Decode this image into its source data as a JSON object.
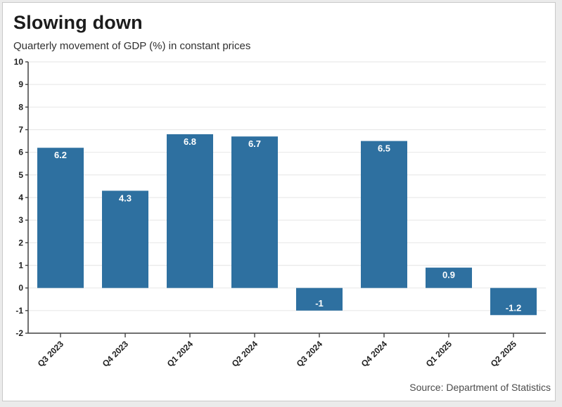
{
  "header": {
    "title": "Slowing down",
    "subtitle": "Quarterly movement of GDP (%) in constant prices"
  },
  "footer": {
    "source": "Source: Department of Statistics"
  },
  "chart_data": {
    "type": "bar",
    "title": "Slowing down",
    "subtitle": "Quarterly movement of GDP (%) in constant prices",
    "categories": [
      "Q3 2023",
      "Q4 2023",
      "Q1 2024",
      "Q2 2024",
      "Q3 2024",
      "Q4 2024",
      "Q1 2025",
      "Q2 2025"
    ],
    "values": [
      6.2,
      4.3,
      6.8,
      6.7,
      -1,
      6.5,
      0.9,
      -1.2
    ],
    "bar_labels": [
      "6.2",
      "4.3",
      "6.8",
      "6.7",
      "-1",
      "6.5",
      "0.9",
      "-1.2"
    ],
    "xlabel": "",
    "ylabel": "",
    "ylim": [
      -2,
      10
    ],
    "ytick_step": 1,
    "grid": true,
    "legend": false,
    "source": "Source: Department of Statistics",
    "colors": {
      "bar": "#2e70a0",
      "bar_label": "#ffffff",
      "grid": "#e9e9e9",
      "axis": "#414141",
      "tick_text": "#1f1f1f",
      "card_background": "#ffffff",
      "frame_background": "#ebebeb",
      "card_border": "#c9c9c9"
    }
  }
}
